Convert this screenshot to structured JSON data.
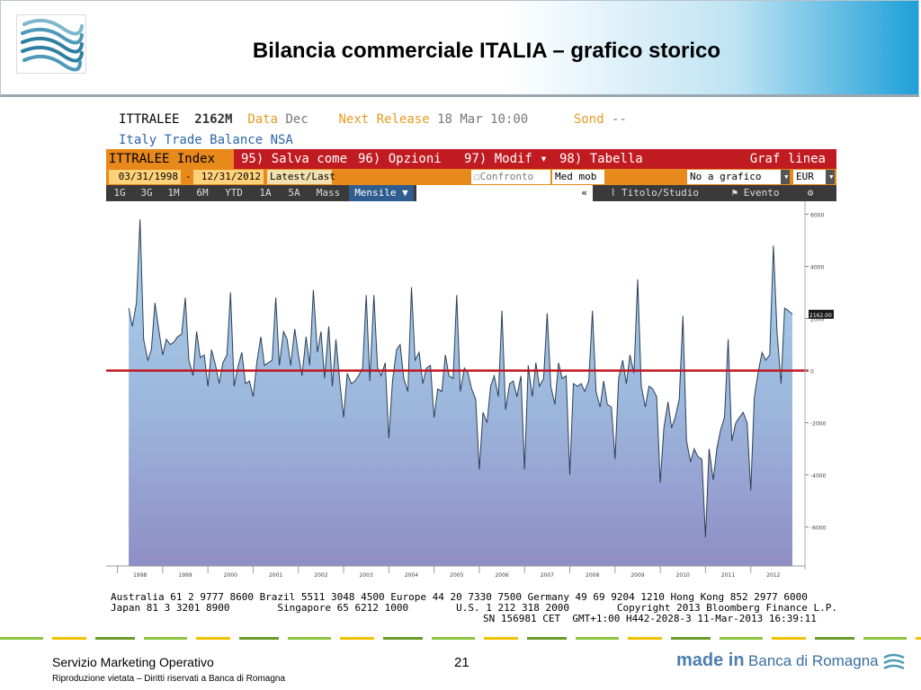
{
  "slide": {
    "title": "Bilancia commerciale ITALIA – grafico storico",
    "footer_left": "Servizio Marketing Operativo",
    "footer_sub": "Riproduzione vietata – Diritti riservati a Banca di Romagna",
    "page_number": "21",
    "brand_made_in": "made in",
    "brand_name": "Banca di Romagna"
  },
  "bloomberg": {
    "ticker": "ITTRALEE",
    "value": "2162M",
    "data_label": "Data",
    "data_value": "Dec",
    "next_release_label": "Next Release",
    "next_release_value": "18 Mar 10:00",
    "sond_label": "Sond",
    "sond_value": "--",
    "subtitle": "Italy Trade Balance NSA",
    "toolbar_red": {
      "index": "ITTRALEE Index",
      "save": "95) Salva come",
      "options": "96) Opzioni",
      "modif": "97) Modif",
      "table": "98) Tabella",
      "graf": "Graf linea"
    },
    "toolbar_orange": {
      "start_date": "03/31/1998",
      "dash": "-",
      "end_date": "12/31/2012",
      "latest": "Latest/Last",
      "compare": "Confronto",
      "med": "Med mob",
      "no_graph": "No a grafico infe",
      "currency": "EUR"
    },
    "toolbar_gray": {
      "periods": [
        "1G",
        "3G",
        "1M",
        "6M",
        "YTD",
        "1A",
        "5A",
        "Mass"
      ],
      "frequency": "Mensile ▼",
      "collapse": "«",
      "title_study": "Titolo/Studio",
      "event": "Evento",
      "settings": "⚙"
    },
    "footer_line1": "Australia 61 2 9777 8600 Brazil 5511 3048 4500 Europe 44 20 7330 7500 Germany 49 69 9204 1210 Hong Kong 852 2977 6000",
    "footer_line2": "Japan 81 3 3201 8900        Singapore 65 6212 1000        U.S. 1 212 318 2000        Copyright 2013 Bloomberg Finance L.P.",
    "footer_line3": "SN 156981 CET  GMT+1:00 H442-2028-3 11-Mar-2013 16:39:11"
  },
  "chart_data": {
    "type": "area",
    "title": "",
    "xlabel": "",
    "ylabel": "",
    "ylim": [
      -7500,
      6500
    ],
    "yticks": [
      6000,
      4000,
      2000,
      0,
      -2000,
      -4000,
      -6000
    ],
    "ytick_labels": [
      "6000",
      "4000",
      "2000",
      "0",
      "-2000",
      "-4000",
      "-6000"
    ],
    "xlim": [
      1997.75,
      2013.0
    ],
    "xticks": [
      1998,
      1999,
      2000,
      2001,
      2002,
      2003,
      2004,
      2005,
      2006,
      2007,
      2008,
      2009,
      2010,
      2011,
      2012
    ],
    "xtick_labels": [
      "1998",
      "1999",
      "2000",
      "2001",
      "2002",
      "2003",
      "2004",
      "2005",
      "2006",
      "2007",
      "2008",
      "2009",
      "2010",
      "2011",
      "2012"
    ],
    "last_value_label": "2162.00",
    "reference_line": 0,
    "series": [
      {
        "values": [
          [
            1998.25,
            2400
          ],
          [
            1998.33,
            1700
          ],
          [
            1998.42,
            2600
          ],
          [
            1998.5,
            5800
          ],
          [
            1998.58,
            1200
          ],
          [
            1998.67,
            400
          ],
          [
            1998.75,
            800
          ],
          [
            1998.83,
            2600
          ],
          [
            1998.92,
            1500
          ],
          [
            1999.0,
            600
          ],
          [
            1999.08,
            1200
          ],
          [
            1999.17,
            1000
          ],
          [
            1999.25,
            1100
          ],
          [
            1999.33,
            1300
          ],
          [
            1999.42,
            1400
          ],
          [
            1999.5,
            2800
          ],
          [
            1999.58,
            400
          ],
          [
            1999.67,
            -200
          ],
          [
            1999.75,
            1500
          ],
          [
            1999.83,
            500
          ],
          [
            1999.92,
            600
          ],
          [
            2000.0,
            -600
          ],
          [
            2000.08,
            800
          ],
          [
            2000.17,
            200
          ],
          [
            2000.25,
            -500
          ],
          [
            2000.33,
            300
          ],
          [
            2000.42,
            600
          ],
          [
            2000.5,
            3000
          ],
          [
            2000.58,
            -600
          ],
          [
            2000.67,
            200
          ],
          [
            2000.75,
            700
          ],
          [
            2000.83,
            -500
          ],
          [
            2000.92,
            -400
          ],
          [
            2001.0,
            -1000
          ],
          [
            2001.08,
            300
          ],
          [
            2001.17,
            1300
          ],
          [
            2001.25,
            200
          ],
          [
            2001.33,
            300
          ],
          [
            2001.42,
            400
          ],
          [
            2001.5,
            2800
          ],
          [
            2001.58,
            200
          ],
          [
            2001.67,
            1500
          ],
          [
            2001.75,
            1200
          ],
          [
            2001.83,
            200
          ],
          [
            2001.92,
            1600
          ],
          [
            2002.0,
            600
          ],
          [
            2002.08,
            -200
          ],
          [
            2002.17,
            1300
          ],
          [
            2002.25,
            200
          ],
          [
            2002.33,
            3100
          ],
          [
            2002.42,
            700
          ],
          [
            2002.5,
            1500
          ],
          [
            2002.58,
            -300
          ],
          [
            2002.67,
            1700
          ],
          [
            2002.75,
            -600
          ],
          [
            2002.83,
            1200
          ],
          [
            2002.92,
            -500
          ],
          [
            2003.0,
            -1800
          ],
          [
            2003.08,
            -100
          ],
          [
            2003.17,
            -500
          ],
          [
            2003.25,
            -400
          ],
          [
            2003.33,
            -200
          ],
          [
            2003.42,
            100
          ],
          [
            2003.5,
            2900
          ],
          [
            2003.58,
            -400
          ],
          [
            2003.67,
            2900
          ],
          [
            2003.75,
            100
          ],
          [
            2003.83,
            -200
          ],
          [
            2003.92,
            300
          ],
          [
            2004.0,
            -2600
          ],
          [
            2004.08,
            -400
          ],
          [
            2004.17,
            800
          ],
          [
            2004.25,
            1000
          ],
          [
            2004.33,
            -300
          ],
          [
            2004.42,
            -800
          ],
          [
            2004.5,
            3200
          ],
          [
            2004.58,
            400
          ],
          [
            2004.67,
            700
          ],
          [
            2004.75,
            -500
          ],
          [
            2004.83,
            100
          ],
          [
            2004.92,
            200
          ],
          [
            2005.0,
            -1800
          ],
          [
            2005.08,
            -700
          ],
          [
            2005.17,
            -800
          ],
          [
            2005.25,
            600
          ],
          [
            2005.33,
            -200
          ],
          [
            2005.42,
            -300
          ],
          [
            2005.5,
            2900
          ],
          [
            2005.58,
            -800
          ],
          [
            2005.67,
            100
          ],
          [
            2005.75,
            -100
          ],
          [
            2005.83,
            -700
          ],
          [
            2005.92,
            -1100
          ],
          [
            2006.0,
            -3800
          ],
          [
            2006.08,
            -1600
          ],
          [
            2006.17,
            -2000
          ],
          [
            2006.25,
            -600
          ],
          [
            2006.33,
            -200
          ],
          [
            2006.42,
            -1000
          ],
          [
            2006.5,
            2300
          ],
          [
            2006.58,
            -1500
          ],
          [
            2006.67,
            -500
          ],
          [
            2006.75,
            -400
          ],
          [
            2006.83,
            -1000
          ],
          [
            2006.92,
            -200
          ],
          [
            2007.0,
            -3800
          ],
          [
            2007.08,
            200
          ],
          [
            2007.17,
            -1000
          ],
          [
            2007.25,
            300
          ],
          [
            2007.33,
            -600
          ],
          [
            2007.42,
            -300
          ],
          [
            2007.5,
            2200
          ],
          [
            2007.58,
            -600
          ],
          [
            2007.67,
            -1300
          ],
          [
            2007.75,
            300
          ],
          [
            2007.83,
            -300
          ],
          [
            2007.92,
            -200
          ],
          [
            2008.0,
            -4000
          ],
          [
            2008.08,
            -500
          ],
          [
            2008.17,
            -600
          ],
          [
            2008.25,
            -500
          ],
          [
            2008.33,
            -800
          ],
          [
            2008.42,
            -400
          ],
          [
            2008.5,
            2300
          ],
          [
            2008.58,
            -800
          ],
          [
            2008.67,
            -1400
          ],
          [
            2008.75,
            -400
          ],
          [
            2008.83,
            -1300
          ],
          [
            2008.92,
            -1400
          ],
          [
            2009.0,
            -3400
          ],
          [
            2009.08,
            -300
          ],
          [
            2009.17,
            400
          ],
          [
            2009.25,
            -500
          ],
          [
            2009.33,
            600
          ],
          [
            2009.42,
            -100
          ],
          [
            2009.5,
            3500
          ],
          [
            2009.58,
            -600
          ],
          [
            2009.67,
            -1400
          ],
          [
            2009.75,
            -600
          ],
          [
            2009.83,
            -700
          ],
          [
            2009.92,
            -1000
          ],
          [
            2010.0,
            -4300
          ],
          [
            2010.08,
            -2200
          ],
          [
            2010.17,
            -1200
          ],
          [
            2010.25,
            -2200
          ],
          [
            2010.33,
            -1800
          ],
          [
            2010.42,
            -1100
          ],
          [
            2010.5,
            2100
          ],
          [
            2010.58,
            -2700
          ],
          [
            2010.67,
            -3500
          ],
          [
            2010.75,
            -3000
          ],
          [
            2010.83,
            -3300
          ],
          [
            2010.92,
            -3400
          ],
          [
            2011.0,
            -6400
          ],
          [
            2011.08,
            -3000
          ],
          [
            2011.17,
            -4200
          ],
          [
            2011.25,
            -3000
          ],
          [
            2011.33,
            -2300
          ],
          [
            2011.42,
            -1800
          ],
          [
            2011.5,
            1200
          ],
          [
            2011.58,
            -2700
          ],
          [
            2011.67,
            -2000
          ],
          [
            2011.75,
            -1800
          ],
          [
            2011.83,
            -1600
          ],
          [
            2011.92,
            -2000
          ],
          [
            2012.0,
            -4600
          ],
          [
            2012.08,
            -1000
          ],
          [
            2012.17,
            0
          ],
          [
            2012.25,
            700
          ],
          [
            2012.33,
            400
          ],
          [
            2012.42,
            600
          ],
          [
            2012.5,
            4800
          ],
          [
            2012.58,
            1500
          ],
          [
            2012.67,
            -500
          ],
          [
            2012.75,
            2400
          ],
          [
            2012.83,
            2300
          ],
          [
            2012.92,
            2162
          ]
        ]
      }
    ]
  }
}
